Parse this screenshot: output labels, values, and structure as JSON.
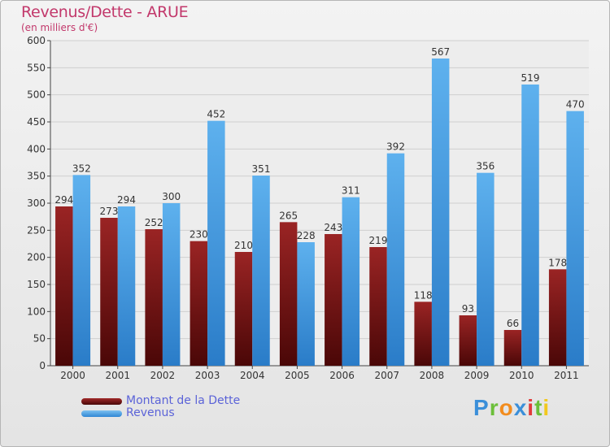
{
  "chart_data": {
    "type": "bar",
    "title": "Revenus/Dette - ARUE",
    "subtitle": "(en milliers d'€)",
    "categories": [
      "2000",
      "2001",
      "2002",
      "2003",
      "2004",
      "2005",
      "2006",
      "2007",
      "2008",
      "2009",
      "2010",
      "2011"
    ],
    "series": [
      {
        "name": "Montant de la Dette",
        "color": "#7a1a1a",
        "values": [
          294,
          273,
          252,
          230,
          210,
          265,
          243,
          219,
          118,
          93,
          66,
          178
        ]
      },
      {
        "name": "Revenus",
        "color": "#4da3e6",
        "values": [
          352,
          294,
          300,
          452,
          351,
          228,
          311,
          392,
          567,
          356,
          519,
          470
        ]
      }
    ],
    "ylim": [
      0,
      600
    ],
    "yticks": [
      0,
      50,
      100,
      150,
      200,
      250,
      300,
      350,
      400,
      450,
      500,
      550,
      600
    ],
    "grid": true,
    "legend": "bottom-left"
  },
  "brand": {
    "letters": [
      {
        "ch": "P",
        "color": "#3b8fd9"
      },
      {
        "ch": "r",
        "color": "#6cbf3a"
      },
      {
        "ch": "o",
        "color": "#f28c1e"
      },
      {
        "ch": "x",
        "color": "#3b8fd9"
      },
      {
        "ch": "i",
        "color": "#e23b3b"
      },
      {
        "ch": "t",
        "color": "#6cbf3a"
      },
      {
        "ch": "i",
        "color": "#f2c81e"
      }
    ]
  }
}
